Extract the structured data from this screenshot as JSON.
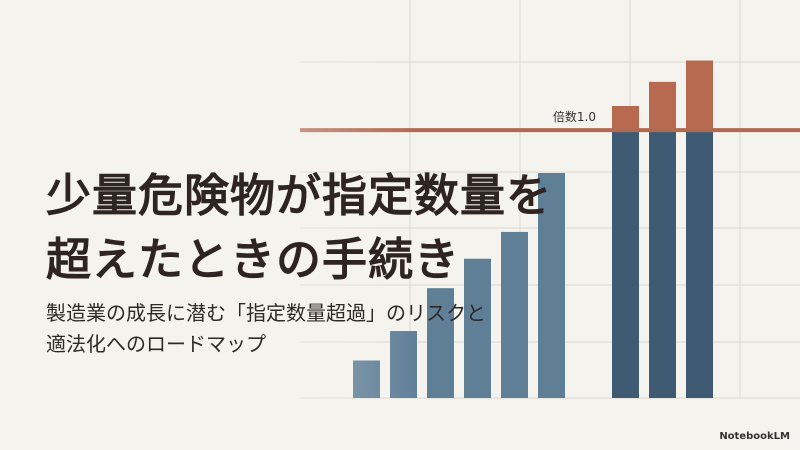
{
  "chart_data": {
    "type": "bar",
    "values": [
      0.14,
      0.25,
      0.41,
      0.52,
      0.62,
      0.84,
      null,
      1.09,
      1.18,
      1.26
    ],
    "ylim": [
      0,
      1.4
    ],
    "threshold": {
      "value": 1.0,
      "label": "倍数1.0",
      "color": "#b06a4f"
    },
    "color": "#5f7f97",
    "over_color": "#3f5b74",
    "excess_color": "#b86a50"
  },
  "slide": {
    "title": [
      "少量危険物が指定数量を",
      "超えたときの手続き"
    ],
    "subtitle": [
      "製造業の成長に潜む「指定数量超過」のリスクと",
      "適法化へのロードマップ"
    ],
    "brand": "NotebookLM"
  }
}
